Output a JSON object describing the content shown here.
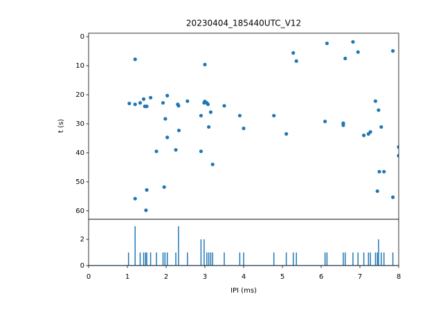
{
  "chart_data": [
    {
      "type": "scatter",
      "title": "20230404_185440UTC_V12",
      "ylabel": "t (s)",
      "color": "#1f77b4",
      "x": [
        1.2,
        1.05,
        1.2,
        1.33,
        1.42,
        1.45,
        1.5,
        1.6,
        1.75,
        1.2,
        1.5,
        1.48,
        1.92,
        1.95,
        1.98,
        2.03,
        2.03,
        2.25,
        2.3,
        2.32,
        2.33,
        2.55,
        2.9,
        2.9,
        2.98,
        3.0,
        3.0,
        3.05,
        3.08,
        3.1,
        3.15,
        3.2,
        3.5,
        3.9,
        4.0,
        4.78,
        5.1,
        5.28,
        5.36,
        6.1,
        6.15,
        6.57,
        6.57,
        6.62,
        6.82,
        6.95,
        7.1,
        7.22,
        7.27,
        7.4,
        7.45,
        7.48,
        7.5,
        7.55,
        7.62,
        7.85,
        7.85,
        8.0,
        8.0
      ],
      "values": [
        7.8,
        23,
        23.3,
        22.8,
        21.5,
        24,
        24,
        21,
        39.5,
        55.8,
        52.8,
        59.8,
        22.8,
        51.8,
        28.3,
        20.3,
        34.7,
        39,
        23.3,
        23.8,
        32.3,
        22.2,
        27.2,
        39.5,
        22.8,
        22.3,
        9.6,
        22.8,
        23.3,
        31.1,
        26,
        44,
        23.8,
        27.2,
        31.6,
        27.2,
        33.5,
        5.6,
        8.4,
        29.2,
        2.3,
        29.8,
        30.5,
        7.5,
        1.8,
        5.3,
        34,
        33.5,
        32.8,
        22.2,
        53.2,
        25.3,
        46.5,
        31.1,
        46.5,
        4.9,
        55.3,
        38,
        41
      ],
      "xlim": [
        0,
        8
      ],
      "ylim": [
        62.9,
        -1.2
      ],
      "yticks": [
        0,
        10,
        20,
        30,
        40,
        50,
        60
      ]
    },
    {
      "type": "stem",
      "xlabel": "IPI (ms)",
      "color": "#1f77b4",
      "x": [
        1.03,
        1.2,
        1.33,
        1.42,
        1.47,
        1.5,
        1.6,
        1.75,
        1.92,
        1.97,
        2.03,
        2.25,
        2.32,
        2.55,
        2.9,
        2.98,
        3.05,
        3.1,
        3.15,
        3.2,
        3.5,
        3.9,
        4.0,
        4.78,
        5.1,
        5.28,
        5.36,
        6.1,
        6.15,
        6.57,
        6.62,
        6.82,
        6.95,
        7.1,
        7.22,
        7.27,
        7.4,
        7.45,
        7.48,
        7.55,
        7.62,
        7.85
      ],
      "values": [
        1,
        3,
        1,
        1,
        1,
        1,
        1,
        1,
        1,
        1,
        1,
        1,
        3,
        1,
        2,
        2,
        1,
        1,
        1,
        1,
        1,
        1,
        1,
        1,
        1,
        1,
        1,
        1,
        1,
        1,
        1,
        1,
        1,
        1,
        1,
        1,
        1,
        1,
        2,
        1,
        1,
        1
      ],
      "xlim": [
        0,
        8
      ],
      "xticks": [
        0,
        1,
        2,
        3,
        4,
        5,
        6,
        7,
        8
      ],
      "ylim": [
        0,
        3.53
      ],
      "yticks": [
        0,
        2
      ]
    }
  ]
}
